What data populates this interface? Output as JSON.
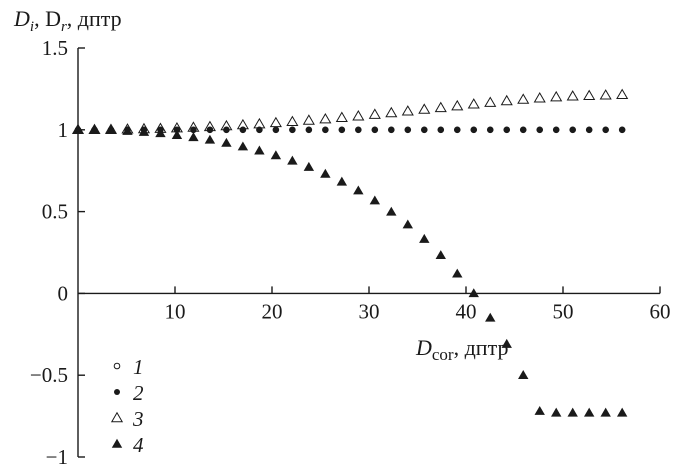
{
  "chart_data": {
    "type": "scatter",
    "y_title": {
      "main": "D",
      "sub1": "i",
      "sep": ", D",
      "sub2": "r",
      "unit": ", дптр"
    },
    "x_title": {
      "main": "D",
      "sub": "cor",
      "unit": ", дптр"
    },
    "xlim": [
      0,
      60
    ],
    "ylim": [
      -1,
      1.5
    ],
    "x_ticks": [
      10,
      20,
      30,
      40,
      50,
      60
    ],
    "y_ticks": [
      {
        "value": 1.5,
        "label": "1.5"
      },
      {
        "value": 1,
        "label": "1"
      },
      {
        "value": 0.5,
        "label": "0.5"
      },
      {
        "value": 0,
        "label": "0"
      },
      {
        "value": -0.5,
        "label": "−0.5"
      },
      {
        "value": -1,
        "label": "−1"
      }
    ],
    "series": [
      {
        "name": "1",
        "marker": "circle-open",
        "x": [
          0,
          1.7,
          3.4,
          5.1,
          6.8,
          8.5,
          10.2,
          11.9,
          13.6,
          15.3,
          17,
          18.7,
          20.4,
          22.1,
          23.8,
          25.5,
          27.2,
          28.9,
          30.6,
          32.3,
          34,
          35.7,
          37.4,
          39.1,
          40.8,
          42.5,
          44.2,
          45.9,
          47.6,
          49.3,
          51,
          52.7,
          54.4,
          56.1
        ],
        "y": [
          1,
          1,
          1,
          1,
          1,
          1,
          1,
          1,
          1,
          1,
          1,
          1,
          1,
          1,
          1,
          1,
          1,
          1,
          1,
          1,
          1,
          1,
          1,
          1,
          1,
          1,
          1,
          1,
          1,
          1,
          1,
          1,
          1,
          1
        ]
      },
      {
        "name": "2",
        "marker": "circle-filled",
        "x": [
          0,
          1.7,
          3.4,
          5.1,
          6.8,
          8.5,
          10.2,
          11.9,
          13.6,
          15.3,
          17,
          18.7,
          20.4,
          22.1,
          23.8,
          25.5,
          27.2,
          28.9,
          30.6,
          32.3,
          34,
          35.7,
          37.4,
          39.1,
          40.8,
          42.5,
          44.2,
          45.9,
          47.6,
          49.3,
          51,
          52.7,
          54.4,
          56.1
        ],
        "y": [
          1,
          1,
          1,
          1,
          1,
          1,
          1,
          1,
          1,
          1,
          1,
          1,
          1,
          1,
          1,
          1,
          1,
          1,
          1,
          1,
          1,
          1,
          1,
          1,
          1,
          1,
          1,
          1,
          1,
          1,
          1,
          1,
          1,
          1
        ]
      },
      {
        "name": "3",
        "marker": "triangle-open",
        "x": [
          0,
          1.7,
          3.4,
          5.1,
          6.8,
          8.5,
          10.2,
          11.9,
          13.6,
          15.3,
          17,
          18.7,
          20.4,
          22.1,
          23.8,
          25.5,
          27.2,
          28.9,
          30.6,
          32.3,
          34,
          35.7,
          37.4,
          39.1,
          40.8,
          42.5,
          44.2,
          45.9,
          47.6,
          49.3,
          51,
          52.7,
          54.4,
          56.1
        ],
        "y": [
          1,
          1,
          1.001,
          1.003,
          1.005,
          1.007,
          1.01,
          1.014,
          1.018,
          1.023,
          1.029,
          1.035,
          1.042,
          1.049,
          1.057,
          1.065,
          1.074,
          1.083,
          1.093,
          1.103,
          1.113,
          1.124,
          1.134,
          1.145,
          1.156,
          1.166,
          1.176,
          1.185,
          1.193,
          1.2,
          1.205,
          1.208,
          1.211,
          1.214
        ]
      },
      {
        "name": "4",
        "marker": "triangle-filled",
        "x": [
          0,
          1.7,
          3.4,
          5.1,
          6.8,
          8.5,
          10.2,
          11.9,
          13.6,
          15.3,
          17,
          18.7,
          20.4,
          22.1,
          23.8,
          25.5,
          27.2,
          28.9,
          30.6,
          32.3,
          34,
          35.7,
          37.4,
          39.1,
          40.8,
          42.5,
          44.2,
          45.9,
          47.6,
          49.3,
          51,
          52.7,
          54.4,
          56.1
        ],
        "y": [
          1,
          0.999,
          0.997,
          0.992,
          0.986,
          0.978,
          0.967,
          0.954,
          0.938,
          0.919,
          0.897,
          0.872,
          0.843,
          0.81,
          0.772,
          0.73,
          0.682,
          0.628,
          0.567,
          0.498,
          0.42,
          0.332,
          0.233,
          0.12,
          -0.0,
          -0.15,
          -0.31,
          -0.5,
          -0.72,
          -0.73,
          -0.73,
          -0.73,
          -0.73,
          -0.73
        ]
      }
    ],
    "legend": {
      "placement": "bottom-left",
      "entries": [
        {
          "label": "1",
          "marker": "circle-open"
        },
        {
          "label": "2",
          "marker": "circle-filled"
        },
        {
          "label": "3",
          "marker": "triangle-open"
        },
        {
          "label": "4",
          "marker": "triangle-filled"
        }
      ]
    },
    "grid": false,
    "colors": {
      "ink": "#1a1a1a",
      "background": "#ffffff"
    }
  }
}
